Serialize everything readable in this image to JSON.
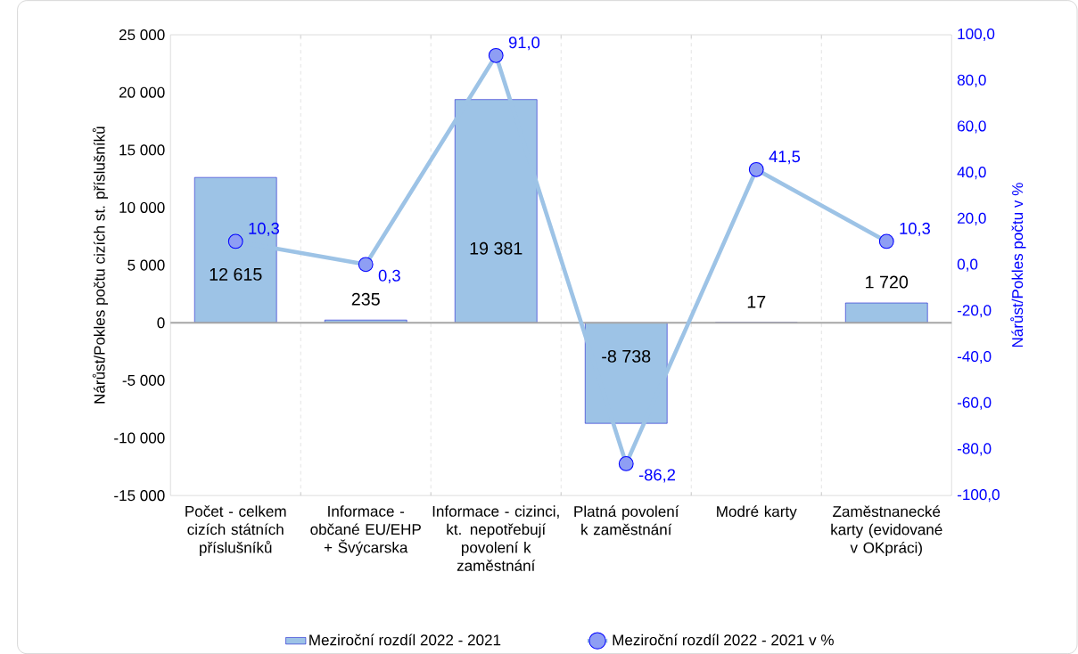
{
  "chart_data": {
    "type": "bar",
    "categories": [
      "Počet - celkem cizích státních příslušníků",
      "Informace - občané EU/EHP + Švýcarska",
      "Informace - cizinci, kt. nepotřebují povolení k zaměstnání",
      "Platná povolení k zaměstnání",
      "Modré karty",
      "Zaměstnanecké karty (evidované v OKpráci)"
    ],
    "series": [
      {
        "name": "Meziroční rozdíl 2022 - 2021",
        "color": "#9dc3e6",
        "values": [
          12615,
          235,
          19381,
          -8738,
          17,
          1720
        ],
        "value_labels": [
          "12 615",
          "235",
          "19 381",
          "-8 738",
          "17",
          "1 720"
        ]
      },
      {
        "name": "Meziroční rozdíl 2022 - 2021  v %",
        "type": "line",
        "axis": "y2",
        "color": "#9dc3e6",
        "values": [
          10.3,
          0.3,
          91.0,
          -86.2,
          41.5,
          10.3
        ],
        "value_labels": [
          "10,3",
          "0,3",
          "91,0",
          "-86,2",
          "41,5",
          "10,3"
        ]
      }
    ],
    "ylabel": "Nárůst/Pokles počtu cizích st. příslušníků",
    "y2label": "Nárůst/Pokles počtu v %",
    "ylim": [
      -15000,
      25000
    ],
    "yticks": [
      {
        "value": -15000,
        "label": "-15 000"
      },
      {
        "value": -10000,
        "label": "-10 000"
      },
      {
        "value": -5000,
        "label": "-5 000"
      },
      0,
      {
        "value": 5000,
        "label": "5 000"
      },
      {
        "value": 10000,
        "label": "10 000"
      },
      {
        "value": 15000,
        "label": "15 000"
      },
      {
        "value": 20000,
        "label": "20 000"
      },
      {
        "value": 25000,
        "label": "25 000"
      }
    ],
    "y2lim": [
      -100,
      100
    ],
    "y2ticks": [
      {
        "value": -100,
        "label": "-100,0"
      },
      {
        "value": -80,
        "label": "-80,0"
      },
      {
        "value": -60,
        "label": "-60,0"
      },
      {
        "value": -40,
        "label": "-40,0"
      },
      {
        "value": -20,
        "label": "-20,0"
      },
      {
        "value": 0,
        "label": "0,0"
      },
      {
        "value": 20,
        "label": "20,0"
      },
      {
        "value": 40,
        "label": "40,0"
      },
      {
        "value": 60,
        "label": "60,0"
      },
      {
        "value": 80,
        "label": "80,0"
      },
      {
        "value": 100,
        "label": "100,0"
      }
    ],
    "grid": "x",
    "legend": "bottom",
    "marker": "circle",
    "line_style": "solid"
  }
}
